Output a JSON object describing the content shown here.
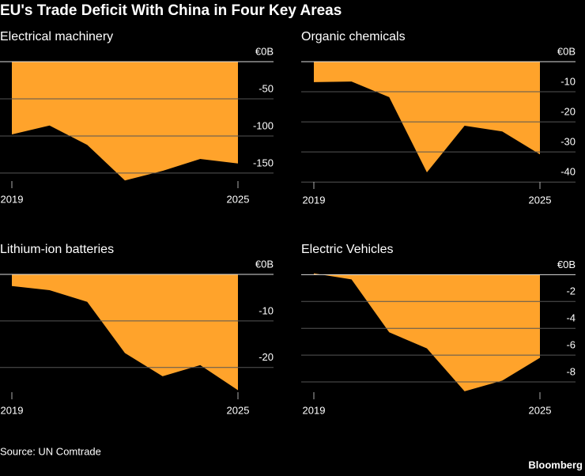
{
  "title": "EU's Trade Deficit With China in Four Key Areas",
  "source": "Source: UN Comtrade",
  "brand": "Bloomberg",
  "chart_data": [
    {
      "type": "area",
      "title": "Electrical machinery",
      "color": "#ffa32b",
      "x": [
        2019,
        2020,
        2021,
        2022,
        2023,
        2024,
        2025
      ],
      "values": [
        -98,
        -86,
        -112,
        -160,
        -147,
        -131,
        -137
      ],
      "xlim": [
        2019,
        2025
      ],
      "xticks": [
        2019,
        2025
      ],
      "ylim": [
        -165,
        0
      ],
      "yticks": [
        {
          "value": 0,
          "label": "€0B"
        },
        -50,
        -100,
        -150
      ],
      "grid": true
    },
    {
      "type": "area",
      "title": "Organic chemicals",
      "color": "#ffa32b",
      "x": [
        2019,
        2020,
        2021,
        2022,
        2023,
        2024,
        2025
      ],
      "values": [
        -6.8,
        -6.6,
        -11.8,
        -36.8,
        -21.3,
        -23.2,
        -30.8
      ],
      "xlim": [
        2019,
        2025
      ],
      "xticks": [
        2019,
        2025
      ],
      "ylim": [
        -41,
        0
      ],
      "yticks": [
        {
          "value": 0,
          "label": "€0B"
        },
        -10,
        -20,
        -30,
        -40
      ],
      "grid": true
    },
    {
      "type": "area",
      "title": "Lithium-ion batteries",
      "color": "#ffa32b",
      "x": [
        2019,
        2020,
        2021,
        2022,
        2023,
        2024,
        2025
      ],
      "values": [
        -2.5,
        -3.4,
        -5.9,
        -16.9,
        -21.9,
        -19.5,
        -24.9
      ],
      "xlim": [
        2019,
        2025
      ],
      "xticks": [
        2019,
        2025
      ],
      "ylim": [
        -26,
        0
      ],
      "yticks": [
        {
          "value": 0,
          "label": "€0B"
        },
        -10,
        -20
      ],
      "grid": true
    },
    {
      "type": "area",
      "title": "Electric Vehicles",
      "color": "#ffa32b",
      "x": [
        2019,
        2020,
        2021,
        2022,
        2023,
        2024,
        2025
      ],
      "values": [
        0.1,
        -0.35,
        -4.3,
        -5.5,
        -8.7,
        -7.9,
        -6.2
      ],
      "xlim": [
        2019,
        2025
      ],
      "xticks": [
        2019,
        2025
      ],
      "ylim": [
        -9,
        0.2
      ],
      "yticks": [
        {
          "value": 0,
          "label": "€0B"
        },
        -2,
        -4,
        -6,
        -8
      ],
      "grid": true
    }
  ]
}
